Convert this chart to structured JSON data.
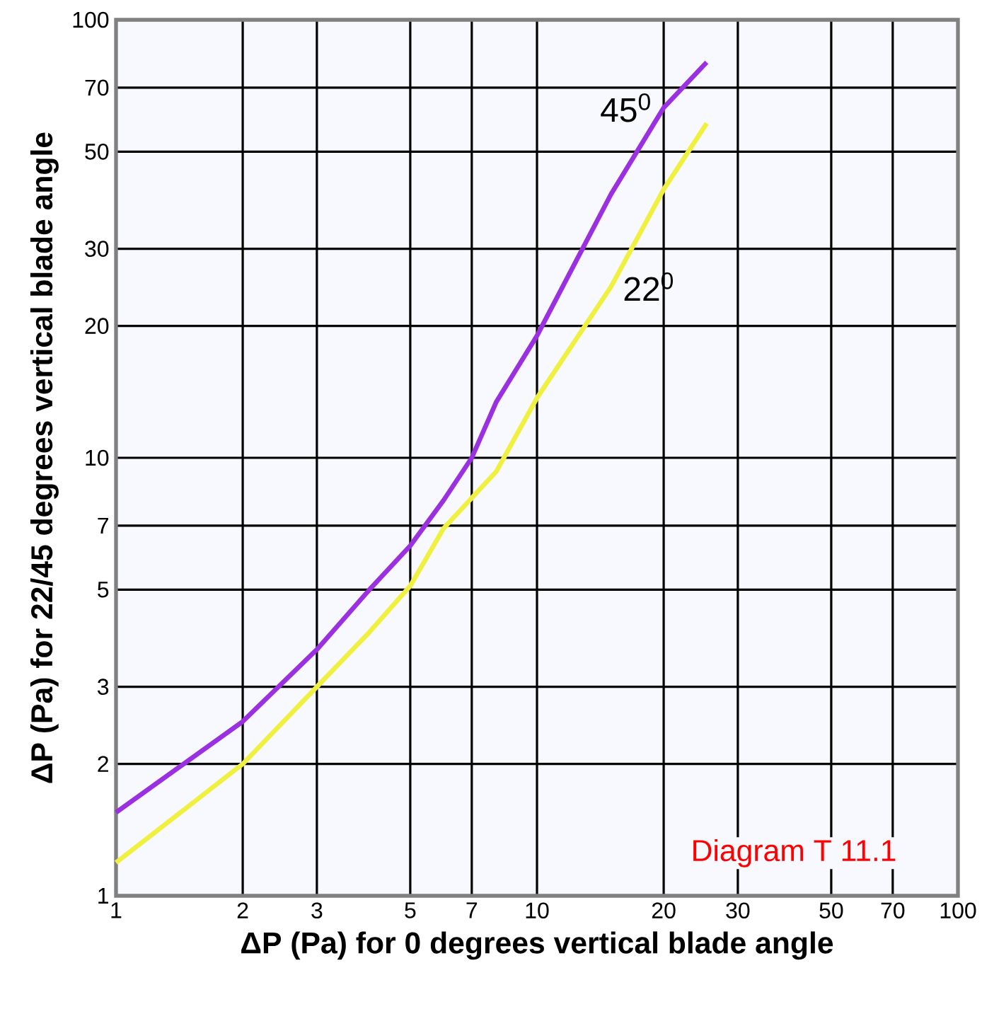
{
  "chart_data": {
    "type": "line",
    "xlabel": "ΔP (Pa) for 0 degrees vertical blade angle",
    "ylabel": "ΔP (Pa) for 22/45 degrees vertical blade angle",
    "log": "xy",
    "grid": true,
    "legend": false,
    "line_style": "solid",
    "xlim": [
      1,
      100
    ],
    "ylim": [
      1,
      100
    ],
    "xticks": [
      1,
      2,
      3,
      5,
      7,
      10,
      20,
      30,
      50,
      70,
      100
    ],
    "yticks": [
      1,
      2,
      3,
      5,
      7,
      10,
      20,
      30,
      50,
      70,
      100
    ],
    "series": [
      {
        "name": "45$^{0}$",
        "color": "#9b30e0",
        "x": [
          1,
          2,
          3,
          4,
          5,
          6,
          7,
          8,
          10,
          15,
          20,
          25.3
        ],
        "values": [
          1.55,
          2.5,
          3.65,
          5,
          6.3,
          8,
          10,
          13.4,
          19,
          40,
          63,
          80
        ]
      },
      {
        "name": "22$^{0}$",
        "color": "#f0f040",
        "x": [
          1,
          2,
          3,
          4,
          5,
          6,
          7,
          8,
          10,
          15,
          20,
          25.3
        ],
        "values": [
          1.19,
          2,
          3,
          4,
          5.1,
          6.9,
          8.1,
          9.3,
          13.7,
          24.6,
          41,
          58
        ]
      }
    ],
    "annotations": [
      "Diagram T 11.1"
    ]
  }
}
